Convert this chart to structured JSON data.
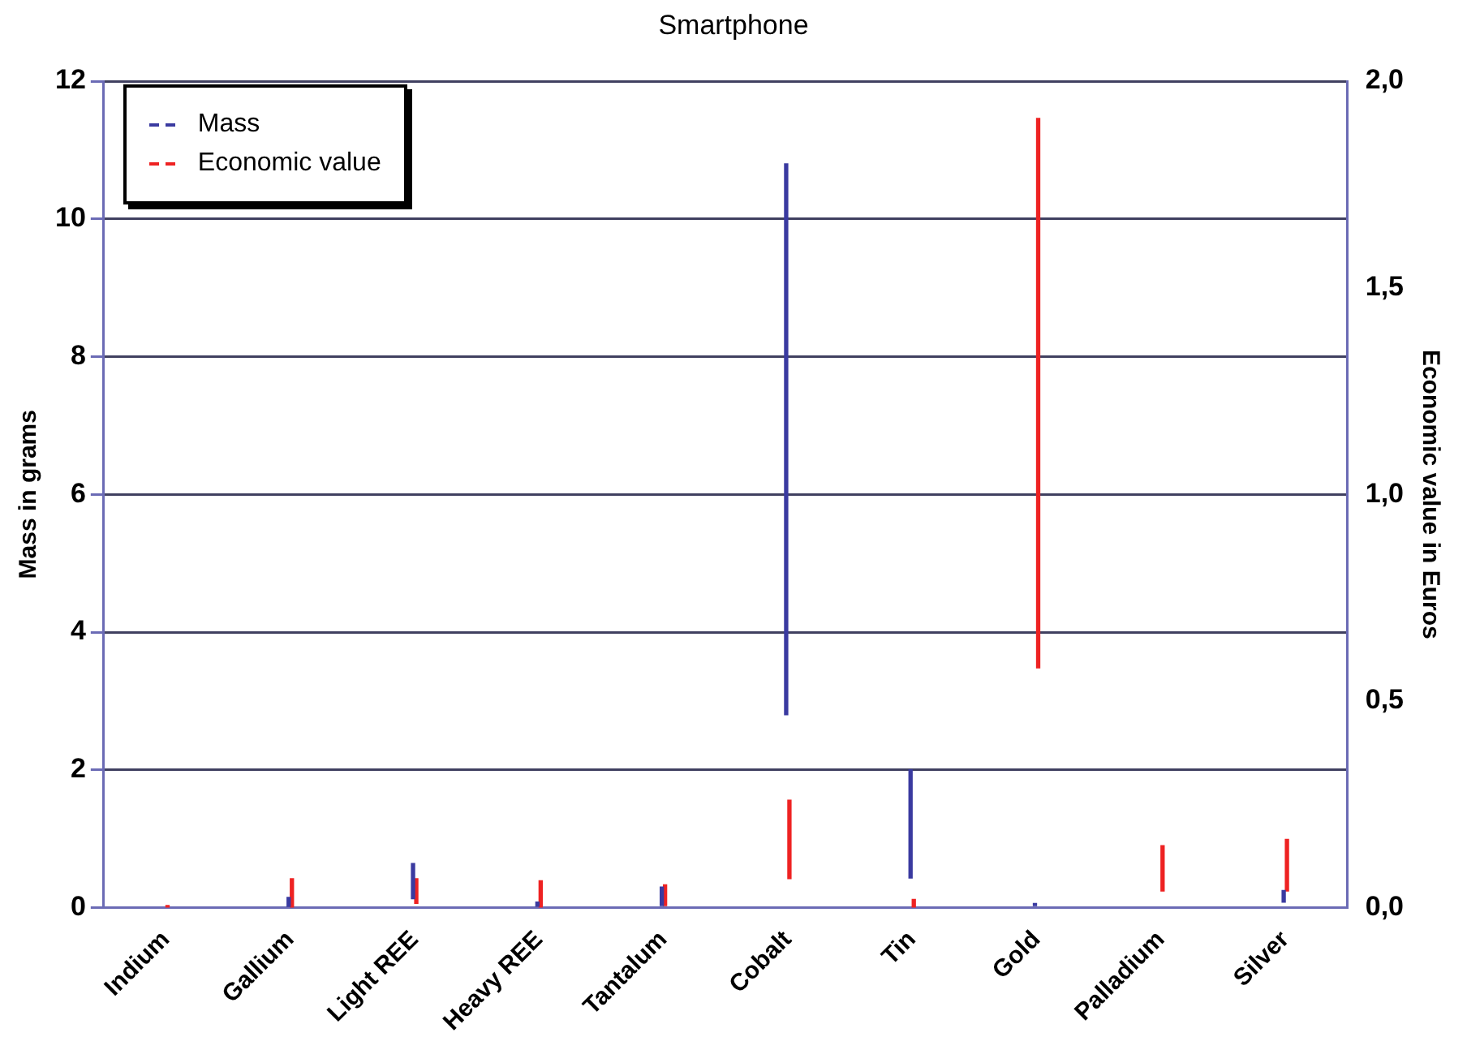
{
  "chart_data": {
    "type": "bar",
    "title": "Smartphone",
    "ylabel": "Mass in grams",
    "y2label": "Economic value in Euros",
    "categories": [
      "Indium",
      "Gallium",
      "Light REE",
      "Heavy REE",
      "Tantalum",
      "Cobalt",
      "Tin",
      "Gold",
      "Palladium",
      "Silver"
    ],
    "series": [
      {
        "name": "Mass",
        "color": "#3a3aa0",
        "base": [
          null,
          0,
          0.13,
          0.02,
          0.03,
          2.8,
          0.43,
          0.03,
          null,
          0.08
        ],
        "values": [
          null,
          0.15,
          0.51,
          0.06,
          0.27,
          8.0,
          1.57,
          0.03,
          null,
          0.17
        ]
      },
      {
        "name": "Economic value",
        "color": "#ee2222",
        "axis": "y2",
        "base": [
          0,
          0,
          0.01,
          0,
          0.005,
          0.07,
          0,
          0.58,
          0.04,
          0.04
        ],
        "values": [
          0.005,
          0.07,
          0.06,
          0.065,
          0.05,
          0.19,
          0.02,
          1.33,
          0.11,
          0.125
        ]
      }
    ],
    "ylim": [
      0,
      12
    ],
    "yticks": [
      0,
      2,
      4,
      6,
      8,
      10,
      12
    ],
    "y2lim": [
      0,
      2
    ],
    "y2ticks": [
      {
        "value": 0,
        "label": "0,0"
      },
      {
        "value": 0.5,
        "label": "0,5"
      },
      {
        "value": 1,
        "label": "1,0"
      },
      {
        "value": 1.5,
        "label": "1,5"
      },
      {
        "value": 2,
        "label": "2,0"
      }
    ],
    "grid": "y",
    "legend": "top left"
  }
}
